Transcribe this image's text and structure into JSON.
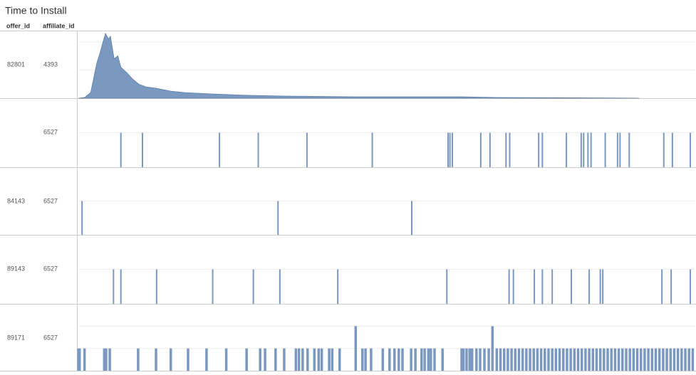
{
  "title": "Time to Install",
  "headers": [
    "offer_id",
    "affiliate_id"
  ],
  "chart_data": [
    {
      "type": "area",
      "offer_id": "82801",
      "affiliate_id": "4393",
      "color": "#7b99c0",
      "x": [
        0,
        1,
        2,
        3,
        3.5,
        4,
        4.4,
        4.9,
        5.2,
        5.8,
        6.4,
        6.9,
        7.9,
        8.7,
        9.8,
        11,
        12.7,
        15,
        17.3,
        22,
        27.7,
        33.5,
        45,
        55,
        62,
        68,
        80,
        91
      ],
      "values": [
        0,
        0.5,
        4,
        25,
        32,
        40,
        46,
        42,
        44,
        28,
        30,
        22,
        18,
        14,
        10,
        8,
        7,
        5,
        4,
        3,
        2,
        1.5,
        1,
        1,
        1,
        0.5,
        0.3,
        0
      ],
      "xlim": [
        0,
        100
      ],
      "ylim": [
        0,
        48
      ],
      "yticks": [
        20,
        40
      ],
      "grid": true
    },
    {
      "type": "spike",
      "offer_id": null,
      "affiliate_id": "6527",
      "color": "#7b99c0",
      "x": [
        6.9,
        10.4,
        22.9,
        29.2,
        37.1,
        47.7,
        60,
        60.3,
        60.7,
        65.3,
        66.8,
        69.4,
        70,
        74.7,
        75.3,
        79.2,
        81.6,
        82,
        82.7,
        83.2,
        85.5,
        87.5,
        87.9,
        89.4,
        95,
        96.4,
        99.3
      ],
      "values": [
        1,
        1,
        1,
        1,
        1,
        1,
        1,
        1,
        1,
        1,
        1,
        1,
        1,
        1,
        1,
        1,
        1,
        1,
        1,
        1,
        1,
        1,
        1,
        1,
        1,
        1,
        1
      ],
      "xlim": [
        0,
        100
      ],
      "ylim": [
        0,
        2
      ],
      "yticks": [
        1
      ],
      "grid": true
    },
    {
      "type": "spike",
      "offer_id": "84143",
      "affiliate_id": "6527",
      "color": "#7b99c0",
      "x": [
        0.6,
        32.4,
        54.1
      ],
      "values": [
        1,
        1,
        1
      ],
      "xlim": [
        0,
        100
      ],
      "ylim": [
        0,
        2
      ],
      "yticks": [
        1
      ],
      "grid": true
    },
    {
      "type": "spike",
      "offer_id": "89143",
      "affiliate_id": "6527",
      "color": "#7b99c0",
      "x": [
        5.7,
        6.9,
        12.7,
        21.8,
        28.4,
        32.7,
        42.1,
        59.8,
        69.9,
        70.6,
        74,
        75.3,
        76.9,
        80,
        82.9,
        84.7,
        85.1,
        94.7,
        96.2,
        99.3
      ],
      "values": [
        1,
        1,
        1,
        1,
        1,
        1,
        1,
        1,
        1,
        1,
        1,
        1,
        1,
        1,
        1,
        1,
        1,
        1,
        1,
        1
      ],
      "xlim": [
        0,
        100
      ],
      "ylim": [
        0,
        2
      ],
      "yticks": [
        1
      ],
      "grid": true
    },
    {
      "type": "spike",
      "offer_id": "89171",
      "affiliate_id": "6527",
      "color": "#7b99c0",
      "x": [
        0,
        0.2,
        1,
        4.2,
        4.5,
        5.1,
        9.7,
        12.6,
        15,
        17.8,
        20.8,
        24,
        27.3,
        29.5,
        30.3,
        32,
        33.4,
        35.3,
        35.8,
        36.4,
        37.2,
        38.3,
        39,
        39.5,
        40.7,
        41.2,
        42.4,
        45,
        46.1,
        46.6,
        47.5,
        49.4,
        50.5,
        51.3,
        52,
        52.6,
        54,
        54.7,
        55.7,
        56.2,
        56.8,
        57.2,
        57.8,
        59.1,
        62.2,
        62.5,
        63,
        63.5,
        63.9,
        64.6,
        65.2,
        65.9,
        66.6,
        67.2,
        67.9,
        68.5,
        69.1,
        69.7,
        70.3,
        70.9,
        71.5,
        72.1,
        72.7,
        73.3,
        73.9,
        74.5,
        75.1,
        75.7,
        76.3,
        76.9,
        77.5,
        78.1,
        78.7,
        79.3,
        79.9,
        80.5,
        81.1,
        81.7,
        82.3,
        82.9,
        83.5,
        84.1,
        84.7,
        85.3,
        85.9,
        86.5,
        87.1,
        87.7,
        88.3,
        88.9,
        89.5,
        90.1,
        90.7,
        91.3,
        91.9,
        92.5,
        93.1,
        93.7,
        94.3,
        94.9,
        95.5,
        96.1,
        96.7,
        97.3,
        97.9,
        98.5,
        99.1,
        99.7
      ],
      "values": [
        1,
        1,
        1,
        1,
        1,
        1,
        1,
        1,
        1,
        1,
        1,
        1,
        1,
        1,
        1,
        1,
        1,
        1,
        1,
        1,
        1,
        1,
        1,
        1,
        1,
        1,
        1,
        2,
        1,
        1,
        1,
        1,
        1,
        1,
        1,
        1,
        1,
        1,
        1,
        1,
        1,
        1,
        1,
        1,
        1,
        1,
        1,
        1,
        1,
        1,
        1,
        1,
        1,
        2,
        1,
        1,
        1,
        1,
        1,
        1,
        1,
        1,
        1,
        1,
        1,
        1,
        1,
        1,
        1,
        1,
        1,
        1,
        1,
        1,
        1,
        1,
        1,
        1,
        1,
        1,
        1,
        1,
        1,
        1,
        1,
        1,
        1,
        1,
        1,
        1,
        1,
        1,
        1,
        1,
        1,
        1,
        1,
        1,
        1,
        1,
        1,
        1,
        1,
        1,
        1,
        1,
        1,
        1
      ],
      "xlim": [
        0,
        100
      ],
      "ylim": [
        0,
        3
      ],
      "yticks": [
        1,
        2
      ],
      "grid": true
    }
  ]
}
